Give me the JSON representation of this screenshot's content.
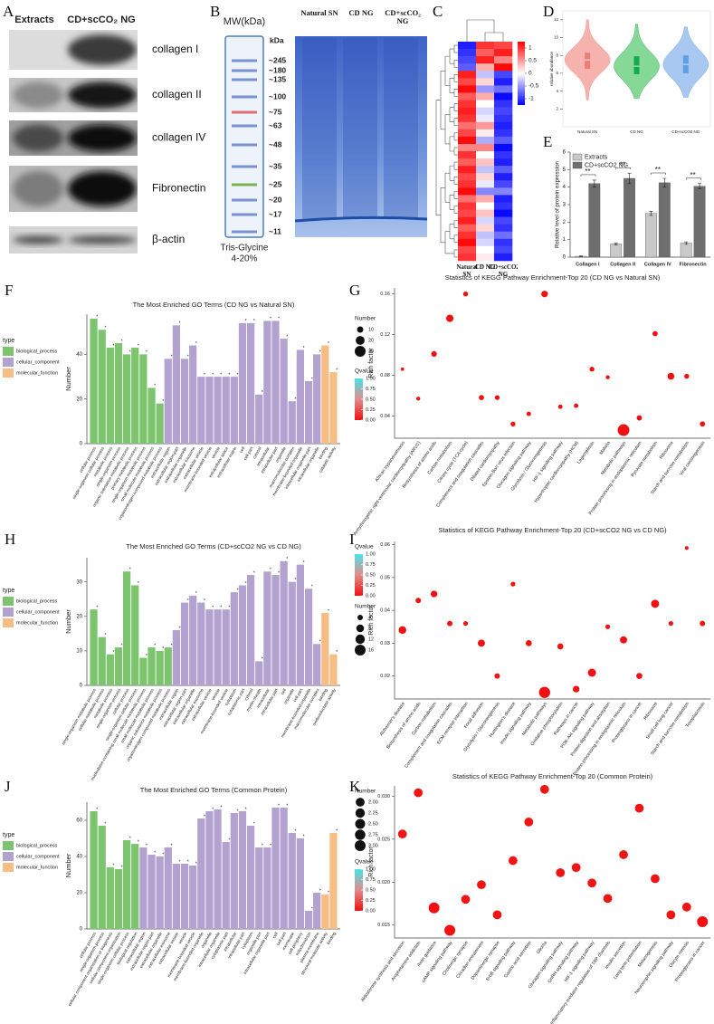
{
  "blots": {
    "panel": "A",
    "columns": [
      "Extracts",
      "CD+scCO₂ NG"
    ],
    "rows": [
      "collagen I",
      "collagen II",
      "collagen IV",
      "Fibronectin",
      "β-actin"
    ]
  },
  "gel": {
    "panel": "B",
    "mw_title": "MW(kDa)",
    "unit": "kDa",
    "markers": [
      "~245",
      "~180",
      "~135",
      "~100",
      "~75",
      "~63",
      "~48",
      "~35",
      "~25",
      "~20",
      "~17",
      "~11"
    ],
    "gel_type": [
      "Tris-Glycine",
      "4-20%"
    ],
    "lanes": [
      "Natural SN",
      "CD NG",
      "CD+scCO₂ NG"
    ]
  },
  "chart_data": [
    {
      "type": "heatmap",
      "panel": "C",
      "columns": [
        "Natural SN",
        "CD NG",
        "CD+scCO2 NG"
      ],
      "values": [
        [
          -1.1,
          1.0,
          0.9
        ],
        [
          -1.0,
          0.8,
          1.1
        ],
        [
          -0.9,
          1.1,
          0.6
        ],
        [
          -0.8,
          0.4,
          1.2
        ],
        [
          1.1,
          -0.3,
          -0.9
        ],
        [
          0.9,
          0.2,
          -1.1
        ],
        [
          1.2,
          -0.5,
          -0.7
        ],
        [
          0.8,
          0.4,
          -1.2
        ],
        [
          1.0,
          0.0,
          -1.0
        ],
        [
          1.1,
          -0.2,
          -0.9
        ],
        [
          1.0,
          -0.1,
          -1.0
        ],
        [
          0.7,
          0.5,
          -1.1
        ],
        [
          0.9,
          0.1,
          -1.0
        ],
        [
          1.2,
          -0.4,
          -0.8
        ],
        [
          0.6,
          0.6,
          -1.2
        ],
        [
          1.0,
          0.0,
          -1.0
        ],
        [
          0.8,
          0.3,
          -1.1
        ],
        [
          1.1,
          -0.3,
          -0.8
        ],
        [
          0.9,
          0.2,
          -1.1
        ],
        [
          1.0,
          -0.1,
          -0.9
        ],
        [
          1.2,
          -0.6,
          -0.6
        ],
        [
          0.7,
          0.4,
          -1.1
        ],
        [
          1.0,
          0.0,
          -1.0
        ],
        [
          0.9,
          0.3,
          -1.2
        ],
        [
          1.1,
          -0.2,
          -0.9
        ],
        [
          0.8,
          0.2,
          -1.0
        ],
        [
          1.0,
          -0.3,
          -0.7
        ],
        [
          1.2,
          -0.2,
          -1.0
        ],
        [
          0.9,
          0.0,
          -0.9
        ],
        [
          1.0,
          0.1,
          -1.1
        ]
      ],
      "zlim": [
        -1.25,
        1.25
      ],
      "zticks": [
        1,
        0.5,
        0,
        -0.5,
        -1
      ]
    },
    {
      "type": "violin",
      "panel": "D",
      "ylabel": "relative abundance",
      "categories": [
        "Natural SN",
        "CD NG",
        "CD+scCO2 NG"
      ],
      "colors": [
        "#f6b3ae",
        "#86d896",
        "#a8c8f2"
      ],
      "box_colors": [
        "#ec7d76",
        "#16a84c",
        "#5d9fe6"
      ],
      "min": [
        3.0,
        3.2,
        3.3
      ],
      "q1": [
        6.5,
        5.9,
        6.0
      ],
      "median": [
        7.5,
        6.8,
        7.0
      ],
      "q3": [
        8.3,
        7.9,
        8.0
      ],
      "max": [
        12.0,
        11.5,
        11.2
      ],
      "ylim": [
        0,
        13
      ],
      "yticks": [
        2,
        4,
        6,
        8,
        10,
        12
      ]
    },
    {
      "type": "grouped_bar",
      "panel": "E",
      "ylabel": "Relative level of protein expression",
      "categories": [
        "Collagen I",
        "Collagen II",
        "Collagen IV",
        "Fibronectin"
      ],
      "series": [
        {
          "name": "Extracts",
          "color": "#c9c9c9",
          "values": [
            0.05,
            0.75,
            2.5,
            0.8
          ],
          "errors": [
            0.02,
            0.05,
            0.12,
            0.07
          ]
        },
        {
          "name": "CD+scCO2 NG",
          "color": "#6e6e6e",
          "values": [
            4.2,
            4.5,
            4.25,
            4.05
          ],
          "errors": [
            0.2,
            0.3,
            0.25,
            0.15
          ]
        }
      ],
      "annotations": [
        "**",
        "**",
        "**",
        "**"
      ],
      "ylim": [
        0,
        6
      ],
      "yticks": [
        0,
        1,
        2,
        3,
        4,
        5,
        6
      ]
    },
    {
      "type": "bar",
      "panel": "F",
      "title": "The Most Enriched GO Terms (CD NG vs Natural SN)",
      "ylabel": "Number",
      "legend_title": "type",
      "annotation": "*",
      "series": [
        {
          "name": "biological_process",
          "color": "#7cc46e",
          "categories": [
            "cellular process",
            "single-organism cellular process",
            "metabolic process",
            "single-organism process",
            "organic substance metabolic process",
            "primary metabolic process",
            "single-organism metabolic process",
            "small molecule metabolic process",
            "organonitrogen compound metabolic process"
          ],
          "values": [
            56,
            51,
            43,
            45,
            40,
            43,
            40,
            25,
            18
          ]
        },
        {
          "name": "cellular_component",
          "color": "#b3a2cf",
          "categories": [
            "extracellular region",
            "extracellular region part",
            "extracellular organelle",
            "extracellular exosome",
            "extracellular vesicle",
            "membrane-bounded vesicle",
            "vesicle",
            "extracellular space",
            "extracellular matrix",
            "cell",
            "cell part",
            "cytosol",
            "intracellular",
            "intracellular part",
            "organelle",
            "macromolecular complex",
            "membrane-bounded organelle",
            "intracellular organelle part",
            "intracellular organelle"
          ],
          "values": [
            38,
            53,
            38,
            44,
            30,
            30,
            30,
            30,
            30,
            54,
            54,
            22,
            55,
            55,
            47,
            19,
            42,
            28,
            40
          ]
        },
        {
          "name": "molecular_function",
          "color": "#f6be84",
          "categories": [
            "binding",
            "catalytic activity"
          ],
          "values": [
            44,
            32
          ]
        }
      ],
      "ylim": [
        0,
        58
      ],
      "yticks": [
        0,
        20,
        40
      ]
    },
    {
      "type": "scatter",
      "panel": "G",
      "title": "Statistics of KEGG Pathway Enrichment-Top 20 (CD NG vs Natural SN)",
      "ylabel": "Rich factor",
      "categories": [
        "African trypanosomiasis",
        "Arrhythmogenic right ventricular cardiomyopathy (ARVC)",
        "Biosynthesis of amino acids",
        "Carbon metabolism",
        "Citrate cycle (TCA cycle)",
        "Complement and coagulation cascades",
        "Dilated cardiomyopathy",
        "Epstein-Barr virus infection",
        "Glucagon signaling pathway",
        "Glycolysis / Gluconeogenesis",
        "HIF-1 signaling pathway",
        "Hypertrophic cardiomyopathy (HCM)",
        "Legionellosis",
        "Malaria",
        "Metabolic pathways",
        "Protein processing in endoplasmic reticulum",
        "Pyruvate metabolism",
        "Ribosome",
        "Starch and sucrose metabolism",
        "Viral carcinogenesis"
      ],
      "values": [
        0.086,
        0.057,
        0.101,
        0.136,
        0.16,
        0.058,
        0.058,
        0.032,
        0.042,
        0.16,
        0.049,
        0.05,
        0.086,
        0.078,
        0.026,
        0.038,
        0.121,
        0.079,
        0.079,
        0.032
      ],
      "sizes": [
        3,
        4,
        8,
        14,
        6,
        7,
        6,
        6,
        5,
        11,
        5,
        5,
        6,
        4,
        35,
        7,
        7,
        12,
        6,
        7
      ],
      "qvalues": [
        0.02,
        0.01,
        0,
        0,
        0,
        0,
        0,
        0.01,
        0.01,
        0,
        0.01,
        0.01,
        0,
        0.01,
        0,
        0,
        0,
        0,
        0,
        0
      ],
      "size_legend_title": "Number",
      "size_legend": [
        10,
        20,
        30
      ],
      "color_legend_title": "Qvalue",
      "color_ticks": [
        {
          "value": 0,
          "label": "0.00"
        },
        {
          "value": 0.25,
          "label": "0.25"
        },
        {
          "value": 0.5,
          "label": "0.50"
        },
        {
          "value": 0.75,
          "label": "0.75"
        },
        {
          "value": 1,
          "label": "1.00"
        }
      ],
      "ylim": [
        0.018,
        0.166
      ],
      "yticks": [
        0.04,
        0.08,
        0.12,
        0.16
      ]
    },
    {
      "type": "bar",
      "panel": "H",
      "title": "The Most Enriched GO Terms (CD+scCO2 NG vs CD NG)",
      "ylabel": "Number",
      "legend_title": "type",
      "annotation": "*",
      "series": [
        {
          "name": "biological_process",
          "color": "#7cc46e",
          "categories": [
            "single-organism metabolic process",
            "cellular metabolic process",
            "metabolic process",
            "single-organism process",
            "cellular process",
            "single-organism cellular process",
            "nucleobase-containing small molecule metabolic process",
            "small molecule metabolic process",
            "organic substance metabolic process",
            "organonitrogen compound metabolic process"
          ],
          "values": [
            22,
            14,
            9,
            11,
            33,
            29,
            8,
            11,
            10,
            11
          ]
        },
        {
          "name": "cellular_component",
          "color": "#b3a2cf",
          "categories": [
            "extracellular region",
            "extracellular region part",
            "extracellular organelle",
            "extracellular exosome",
            "extracellular vesicle",
            "vesicle",
            "membrane-bounded vesicle",
            "cytoplasm",
            "cytoplasmic part",
            "cytosol",
            "myelin sheath",
            "intracellular",
            "intracellular part",
            "cell",
            "organelle",
            "cell part",
            "membrane-bounded organelle",
            "macromolecular complex"
          ],
          "values": [
            16,
            24,
            26,
            24,
            22,
            22,
            22,
            27,
            29,
            32,
            7,
            33,
            32,
            36,
            30,
            35,
            28,
            12
          ]
        },
        {
          "name": "molecular_function",
          "color": "#f6be84",
          "categories": [
            "binding",
            "oxidoreductase activity"
          ],
          "values": [
            21,
            9
          ]
        }
      ],
      "ylim": [
        0,
        37
      ],
      "yticks": [
        0,
        10,
        20,
        30
      ]
    },
    {
      "type": "scatter",
      "panel": "I",
      "title": "Statistics of KEGG Pathway Enrichment-Top 20 (CD+scCO2 NG vs CD NG)",
      "ylabel": "Rich factor",
      "categories": [
        "Alzheimer's disease",
        "Biosynthesis of amino acids",
        "Carbon metabolism",
        "Complement and coagulation cascades",
        "ECM-receptor interaction",
        "Focal adhesion",
        "Glycolysis / Gluconeogenesis",
        "Huntington's disease",
        "Insulin signaling pathway",
        "Metabolic pathways",
        "Oxidative phosphorylation",
        "Pathways in cancer",
        "PI3K-Akt signaling pathway",
        "Protein digestion and absorption",
        "Protein processing in endoplasmic reticulum",
        "Proteoglycans in cancer",
        "Ribosome",
        "Small cell lung cancer",
        "Starch and sucrose metabolism",
        "Toxoplasmosis"
      ],
      "values": [
        0.034,
        0.043,
        0.045,
        0.036,
        0.036,
        0.03,
        0.02,
        0.048,
        0.03,
        0.015,
        0.029,
        0.016,
        0.021,
        0.035,
        0.031,
        0.02,
        0.042,
        0.036,
        0.059,
        0.036
      ],
      "sizes": [
        8,
        4,
        6,
        4,
        3,
        7,
        4,
        3,
        5,
        17,
        5,
        6,
        9,
        3,
        7,
        5,
        9,
        3,
        2,
        4
      ],
      "qvalues": [
        0.01,
        0.02,
        0.01,
        0.02,
        0.02,
        0.01,
        0.02,
        0.02,
        0.02,
        0,
        0.02,
        0.01,
        0.01,
        0.02,
        0.01,
        0.02,
        0.01,
        0.02,
        0.02,
        0.02
      ],
      "size_legend_title": "Number",
      "size_legend": [
        4,
        8,
        12,
        16
      ],
      "color_legend_title": "Qvalue",
      "color_ticks": [
        {
          "value": 0,
          "label": "0.00"
        },
        {
          "value": 0.25,
          "label": "0.25"
        },
        {
          "value": 0.5,
          "label": "0.50"
        },
        {
          "value": 0.75,
          "label": "0.75"
        },
        {
          "value": 1,
          "label": "1.00"
        }
      ],
      "ylim": [
        0.013,
        0.061
      ],
      "yticks": [
        0.02,
        0.03,
        0.04,
        0.05,
        0.06
      ]
    },
    {
      "type": "bar",
      "panel": "J",
      "title": "The Most Enriched GO Terms (Common Protein)",
      "ylabel": "Number",
      "legend_title": "type",
      "annotation": "*",
      "series": [
        {
          "name": "biological_process",
          "color": "#7cc46e",
          "categories": [
            "cellular process",
            "single-organism process",
            "cellular component organization or biogenesis",
            "cellular component organization",
            "single-organism cellular process",
            "biological regulation"
          ],
          "values": [
            65,
            57,
            34,
            33,
            49,
            47
          ]
        },
        {
          "name": "cellular_component",
          "color": "#b3a2cf",
          "categories": [
            "extracellular region",
            "extracellular region part",
            "extracellular organelle",
            "extracellular exosome",
            "extracellular vesicle",
            "vesicle",
            "membrane-bounded vesicle",
            "membrane-bounded organelle",
            "organelle",
            "intracellular organelle",
            "cytoplasmic part",
            "intracellular",
            "intracellular part",
            "cytoplasm",
            "organelle part",
            "intracellular organelle part",
            "cell",
            "cell part",
            "membrane",
            "cell periphery",
            "mitochondrion",
            "plasma membrane"
          ],
          "values": [
            45,
            41,
            40,
            45,
            36,
            36,
            35,
            61,
            65,
            66,
            48,
            64,
            65,
            57,
            45,
            45,
            67,
            67,
            53,
            50,
            10,
            20
          ]
        },
        {
          "name": "molecular_function",
          "color": "#f6be84",
          "categories": [
            "structural molecule activity",
            "binding"
          ],
          "values": [
            19,
            53
          ]
        }
      ],
      "ylim": [
        0,
        70
      ],
      "yticks": [
        0,
        20,
        40,
        60
      ]
    },
    {
      "type": "scatter",
      "panel": "K",
      "title": "Statistics of KEGG Pathway Enrichment-Top 20 (Common Protein)",
      "ylabel": "Rich factor",
      "categories": [
        "Aldosterone synthesis and secretion",
        "Amphetamine addiction",
        "Axon guidance",
        "cAMP signaling pathway",
        "Cholinergic synapse",
        "Circadian entrainment",
        "Dopaminergic synapse",
        "ErbB signaling pathway",
        "Gastric acid secretion",
        "Glioma",
        "Glucagon signaling pathway",
        "GnRH signaling pathway",
        "HIF-1 signaling pathway",
        "Inflammatory mediator regulation of TRP channels",
        "Insulin secretion",
        "Long-term potentiation",
        "Melanogenesis",
        "Neurotrophin signaling pathway",
        "Oocyte meiosis",
        "Proteoglycans in cancer"
      ],
      "values": [
        0.0256,
        0.0304,
        0.017,
        0.0144,
        0.018,
        0.0197,
        0.0162,
        0.0225,
        0.027,
        0.0308,
        0.0211,
        0.0217,
        0.0199,
        0.0181,
        0.0232,
        0.0286,
        0.0204,
        0.0162,
        0.0171,
        0.0154
      ],
      "sizes": [
        2,
        2,
        3,
        3,
        2,
        2,
        2,
        2,
        2,
        2,
        2,
        2,
        2,
        2,
        2,
        2,
        2,
        2,
        2,
        3
      ],
      "qvalues": [
        0.02,
        0.02,
        0.01,
        0.01,
        0.02,
        0.02,
        0.02,
        0.02,
        0.02,
        0.02,
        0.02,
        0.02,
        0.02,
        0.02,
        0.02,
        0.02,
        0.02,
        0.02,
        0.02,
        0.01
      ],
      "size_legend_title": "Number",
      "size_legend": [
        {
          "value": 2,
          "label": "2.00"
        },
        {
          "value": 2.25,
          "label": "2.25"
        },
        {
          "value": 2.5,
          "label": "2.50"
        },
        {
          "value": 2.75,
          "label": "2.75"
        },
        {
          "value": 3,
          "label": "3.00"
        }
      ],
      "color_legend_title": "Qvalue",
      "color_ticks": [
        {
          "value": 0,
          "label": "0.00"
        },
        {
          "value": 0.25,
          "label": "0.25"
        },
        {
          "value": 0.5,
          "label": "0.50"
        },
        {
          "value": 0.75,
          "label": "0.75"
        },
        {
          "value": 1,
          "label": "1.00"
        }
      ],
      "ylim": [
        0.0135,
        0.0312
      ],
      "yticks": [
        0.015,
        {
          "value": 0.02,
          "label": "0.020"
        },
        0.025,
        {
          "value": 0.03,
          "label": "0.030"
        }
      ]
    }
  ]
}
